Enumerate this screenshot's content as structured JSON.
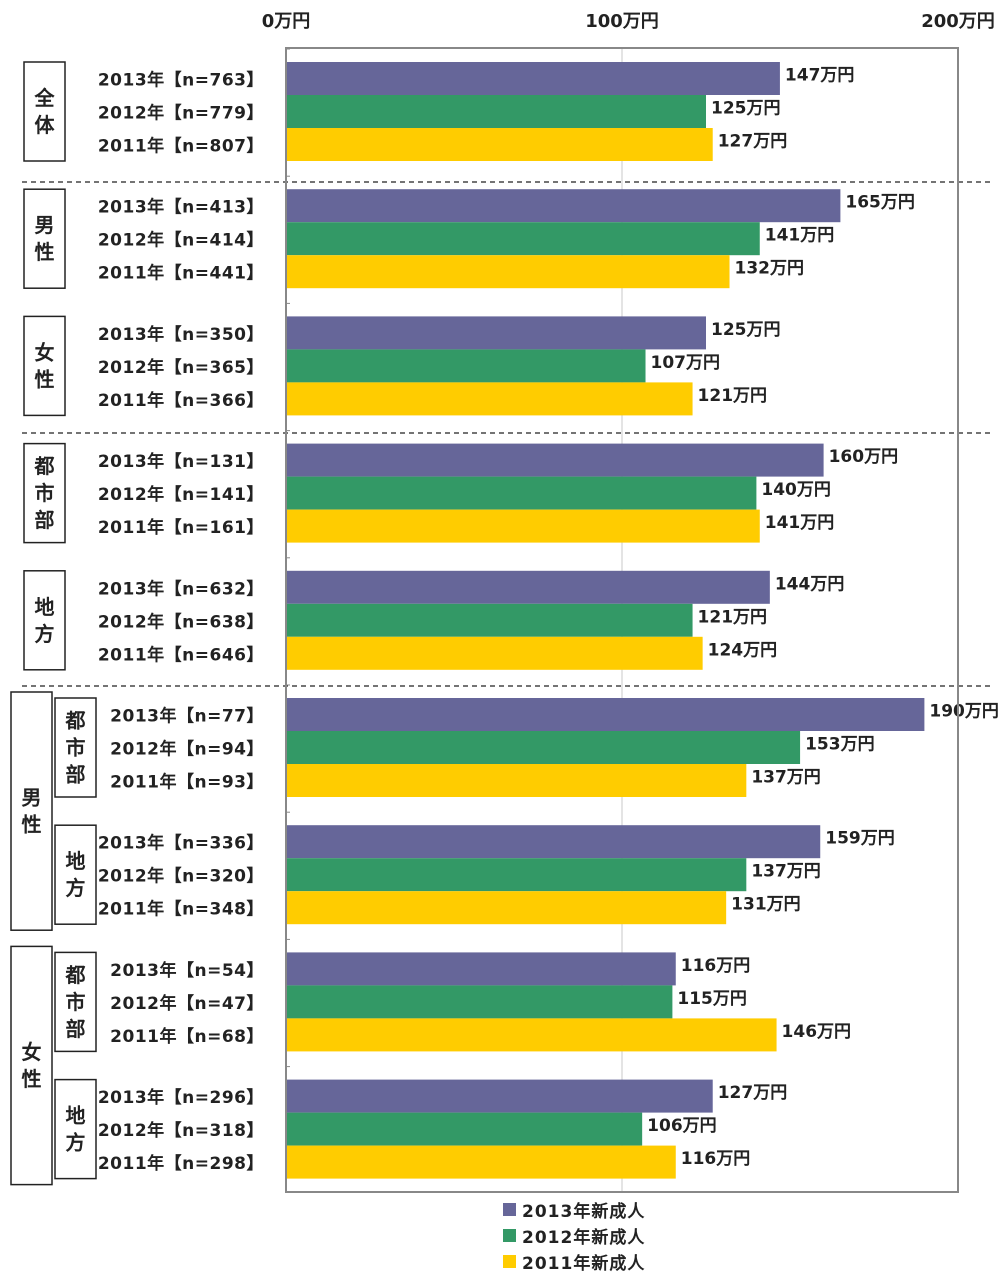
{
  "chart_data": {
    "type": "bar",
    "orientation": "horizontal",
    "xlim": [
      0,
      200
    ],
    "ticks": [
      {
        "value": 0,
        "label": "0万円"
      },
      {
        "value": 100,
        "label": "100万円"
      },
      {
        "value": 200,
        "label": "200万円"
      }
    ],
    "grid": true,
    "legend_position": "bottom",
    "colors": {
      "2013": "#666699",
      "2012": "#339966",
      "2011": "#ffcc00"
    },
    "legend": [
      {
        "key": "2013",
        "label": "2013年新成人"
      },
      {
        "key": "2012",
        "label": "2012年新成人"
      },
      {
        "key": "2011",
        "label": "2011年新成人"
      }
    ],
    "groups": [
      {
        "outer": "",
        "inner": "全体",
        "rows": [
          {
            "key": "2013",
            "label": "2013年【n=763】",
            "value": 147,
            "value_label": "147万円"
          },
          {
            "key": "2012",
            "label": "2012年【n=779】",
            "value": 125,
            "value_label": "125万円"
          },
          {
            "key": "2011",
            "label": "2011年【n=807】",
            "value": 127,
            "value_label": "127万円"
          }
        ]
      },
      {
        "outer": "",
        "inner": "男性",
        "rows": [
          {
            "key": "2013",
            "label": "2013年【n=413】",
            "value": 165,
            "value_label": "165万円"
          },
          {
            "key": "2012",
            "label": "2012年【n=414】",
            "value": 141,
            "value_label": "141万円"
          },
          {
            "key": "2011",
            "label": "2011年【n=441】",
            "value": 132,
            "value_label": "132万円"
          }
        ]
      },
      {
        "outer": "",
        "inner": "女性",
        "rows": [
          {
            "key": "2013",
            "label": "2013年【n=350】",
            "value": 125,
            "value_label": "125万円"
          },
          {
            "key": "2012",
            "label": "2012年【n=365】",
            "value": 107,
            "value_label": "107万円"
          },
          {
            "key": "2011",
            "label": "2011年【n=366】",
            "value": 121,
            "value_label": "121万円"
          }
        ]
      },
      {
        "outer": "",
        "inner": "都市部",
        "rows": [
          {
            "key": "2013",
            "label": "2013年【n=131】",
            "value": 160,
            "value_label": "160万円"
          },
          {
            "key": "2012",
            "label": "2012年【n=141】",
            "value": 140,
            "value_label": "140万円"
          },
          {
            "key": "2011",
            "label": "2011年【n=161】",
            "value": 141,
            "value_label": "141万円"
          }
        ]
      },
      {
        "outer": "",
        "inner": "地方",
        "rows": [
          {
            "key": "2013",
            "label": "2013年【n=632】",
            "value": 144,
            "value_label": "144万円"
          },
          {
            "key": "2012",
            "label": "2012年【n=638】",
            "value": 121,
            "value_label": "121万円"
          },
          {
            "key": "2011",
            "label": "2011年【n=646】",
            "value": 124,
            "value_label": "124万円"
          }
        ]
      },
      {
        "outer": "男性",
        "inner": "都市部",
        "rows": [
          {
            "key": "2013",
            "label": "2013年【n=77】",
            "value": 190,
            "value_label": "190万円"
          },
          {
            "key": "2012",
            "label": "2012年【n=94】",
            "value": 153,
            "value_label": "153万円"
          },
          {
            "key": "2011",
            "label": "2011年【n=93】",
            "value": 137,
            "value_label": "137万円"
          }
        ]
      },
      {
        "outer": "男性",
        "inner": "地方",
        "rows": [
          {
            "key": "2013",
            "label": "2013年【n=336】",
            "value": 159,
            "value_label": "159万円"
          },
          {
            "key": "2012",
            "label": "2012年【n=320】",
            "value": 137,
            "value_label": "137万円"
          },
          {
            "key": "2011",
            "label": "2011年【n=348】",
            "value": 131,
            "value_label": "131万円"
          }
        ]
      },
      {
        "outer": "女性",
        "inner": "都市部",
        "rows": [
          {
            "key": "2013",
            "label": "2013年【n=54】",
            "value": 116,
            "value_label": "116万円"
          },
          {
            "key": "2012",
            "label": "2012年【n=47】",
            "value": 115,
            "value_label": "115万円"
          },
          {
            "key": "2011",
            "label": "2011年【n=68】",
            "value": 146,
            "value_label": "146万円"
          }
        ]
      },
      {
        "outer": "女性",
        "inner": "地方",
        "rows": [
          {
            "key": "2013",
            "label": "2013年【n=296】",
            "value": 127,
            "value_label": "127万円"
          },
          {
            "key": "2012",
            "label": "2012年【n=318】",
            "value": 106,
            "value_label": "106万円"
          },
          {
            "key": "2011",
            "label": "2011年【n=298】",
            "value": 116,
            "value_label": "116万円"
          }
        ]
      }
    ]
  }
}
